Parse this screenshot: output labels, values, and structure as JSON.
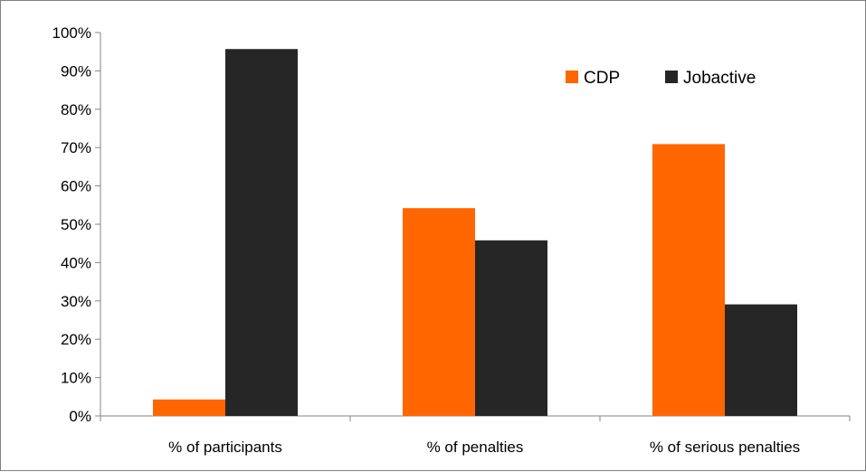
{
  "chart_data": {
    "type": "bar",
    "title": "",
    "xlabel": "",
    "ylabel": "",
    "categories": [
      "% of participants",
      "% of penalties",
      "% of serious penalties"
    ],
    "series": [
      {
        "name": "CDP",
        "color": "#ff6600",
        "values": [
          4.3,
          54.2,
          70.9
        ]
      },
      {
        "name": "Jobactive",
        "color": "#262626",
        "values": [
          95.7,
          45.8,
          29.1
        ]
      }
    ],
    "ylim": [
      0,
      100
    ],
    "y_ticks": [
      "0%",
      "10%",
      "20%",
      "30%",
      "40%",
      "50%",
      "60%",
      "70%",
      "80%",
      "90%",
      "100%"
    ],
    "grid": false,
    "legend_position": "top-right"
  }
}
